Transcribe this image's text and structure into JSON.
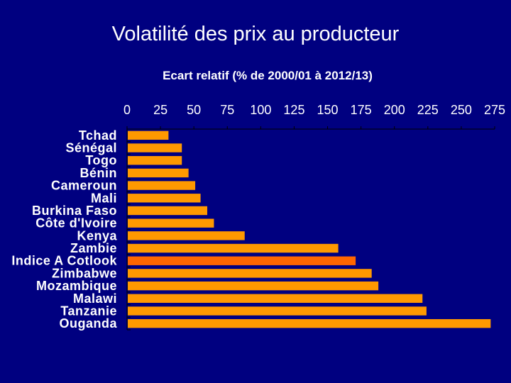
{
  "slide": {
    "title": "Volatilité des prix au producteur"
  },
  "colors": {
    "background": "#000080",
    "bar": "#FF9900",
    "bar_highlight": "#FF6600",
    "text": "#FFFFFF"
  },
  "chart_data": {
    "type": "bar",
    "orientation": "horizontal",
    "title": "Ecart relatif (% de 2000/01 à 2012/13)",
    "xlabel": "",
    "ylabel": "",
    "xlim": [
      0,
      275
    ],
    "xticks": [
      0,
      25,
      50,
      75,
      100,
      125,
      150,
      175,
      200,
      225,
      250,
      275
    ],
    "x_axis_position": "top",
    "grid": false,
    "legend": "none",
    "categories": [
      "Tchad",
      "Sénégal",
      "Togo",
      "Bénin",
      "Cameroun",
      "Mali",
      "Burkina Faso",
      "Côte d'Ivoire",
      "Kenya",
      "Zambie",
      "Indice A Cotlook",
      "Zimbabwe",
      "Mozambique",
      "Malawi",
      "Tanzanie",
      "Ouganda"
    ],
    "values": [
      31,
      41,
      41,
      46,
      51,
      55,
      60,
      65,
      88,
      158,
      171,
      183,
      188,
      221,
      224,
      272
    ],
    "highlight_category": "Indice A Cotlook"
  }
}
